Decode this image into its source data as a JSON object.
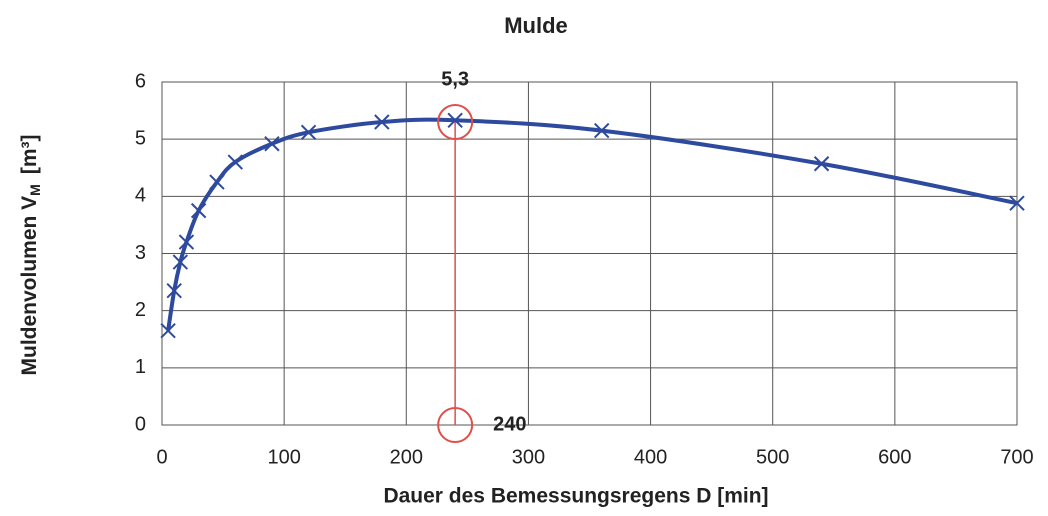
{
  "chart_data": {
    "type": "line",
    "title": "Mulde",
    "xlabel": "Dauer des Bemessungsregens  D [min]",
    "ylabel": {
      "text": "Muldenvolumen V",
      "sub": "M",
      "unit": "[m³]"
    },
    "x": [
      5,
      10,
      15,
      20,
      30,
      45,
      60,
      90,
      120,
      180,
      240,
      360,
      540,
      700
    ],
    "series": [
      {
        "color": "#2e4a9e",
        "values": [
          1.65,
          2.35,
          2.85,
          3.2,
          3.75,
          4.25,
          4.6,
          4.92,
          5.12,
          5.3,
          5.33,
          5.15,
          4.57,
          3.88
        ]
      }
    ],
    "xlim": [
      0,
      700
    ],
    "xticks": [
      0,
      100,
      200,
      300,
      400,
      500,
      600,
      700
    ],
    "ylim": [
      0,
      6
    ],
    "yticks": [
      0,
      1,
      2,
      3,
      4,
      5,
      6
    ],
    "grid": true,
    "annotations": [
      {
        "x": 240,
        "y": 5.3,
        "label": "5,3"
      },
      {
        "x": 240,
        "y": 0,
        "label": "240"
      }
    ],
    "annotation_color": "#e0504a"
  }
}
